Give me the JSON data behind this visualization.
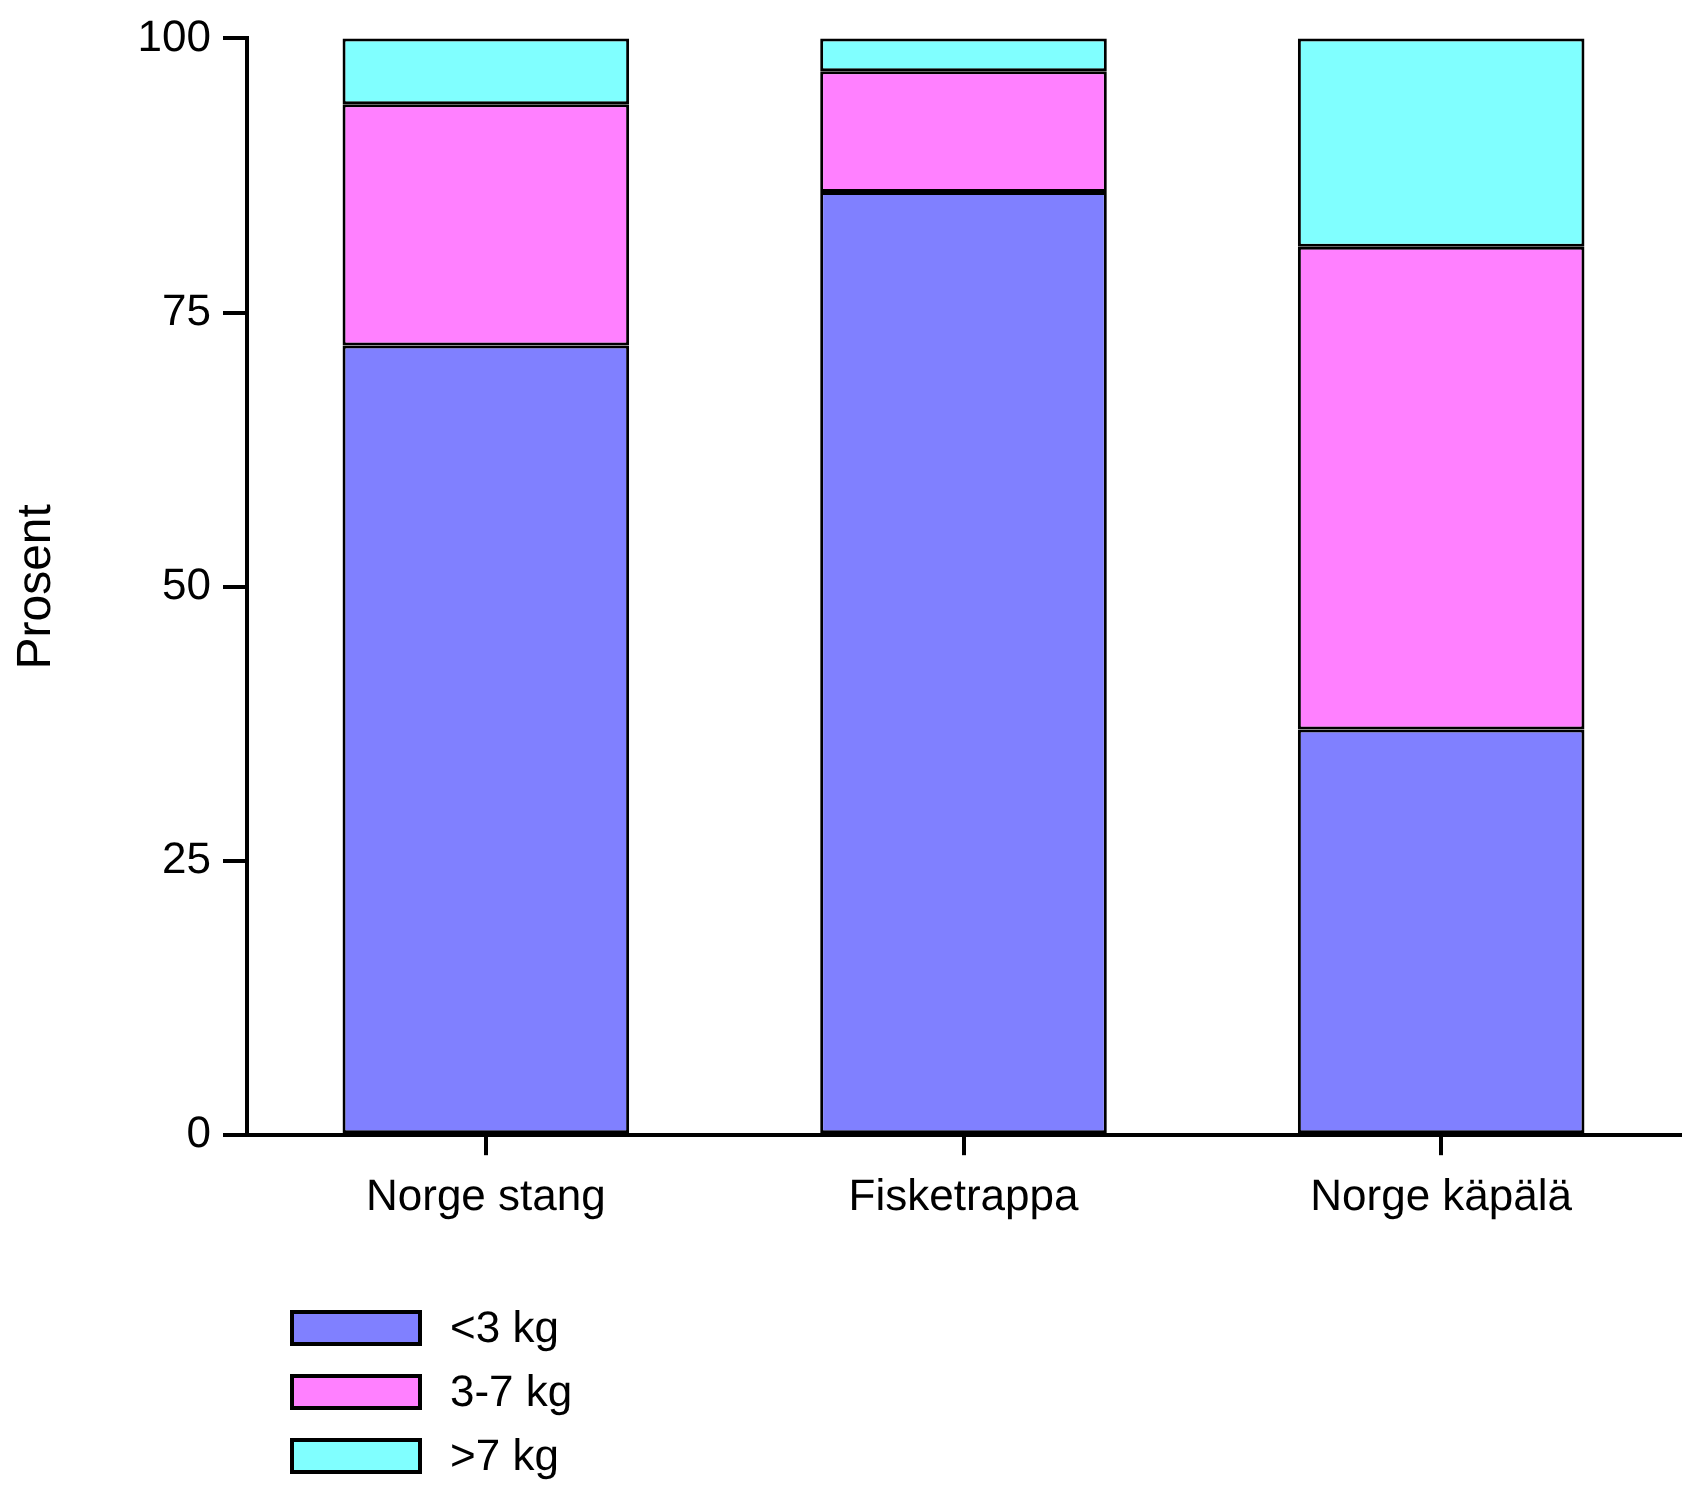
{
  "chart_data": {
    "type": "bar",
    "stacked": true,
    "ylabel": "Prosent",
    "categories": [
      "Norge stang",
      "Fisketrappa",
      "Norge käpälä"
    ],
    "series": [
      {
        "name": "<3 kg",
        "color": "#8080ff",
        "values": [
          72,
          86,
          37
        ]
      },
      {
        "name": "3-7 kg",
        "color": "#ff80ff",
        "values": [
          22,
          11,
          44
        ]
      },
      {
        "name": ">7 kg",
        "color": "#80ffff",
        "values": [
          6,
          3,
          19
        ]
      }
    ],
    "ylim": [
      0,
      100
    ],
    "yticks": [
      0,
      25,
      50,
      75,
      100
    ],
    "grid": false,
    "legend": "bottom left"
  }
}
